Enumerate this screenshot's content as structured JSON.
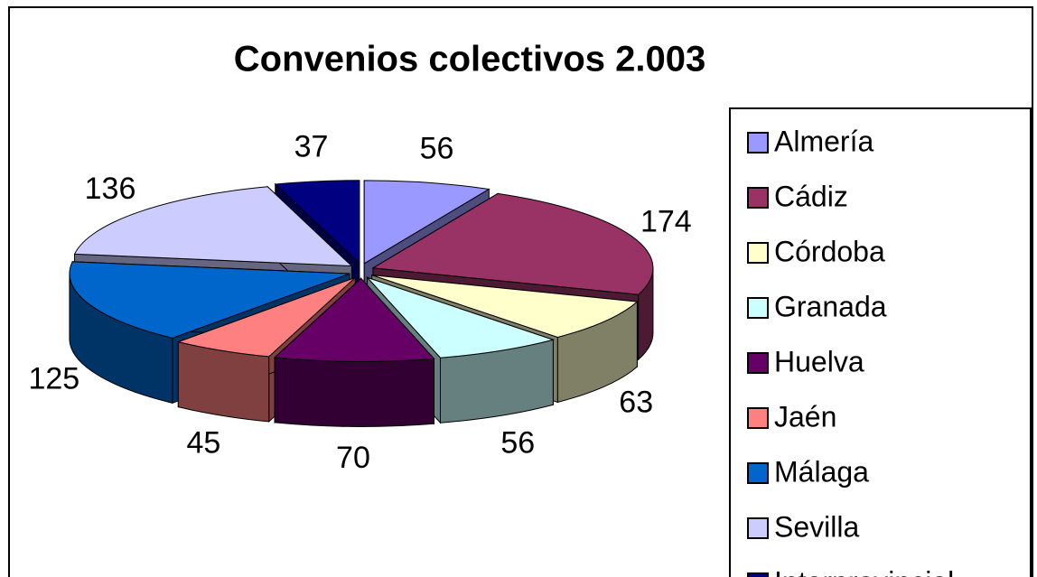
{
  "chart_data": {
    "type": "pie",
    "title": "Convenios colectivos 2.003",
    "categories": [
      "Almería",
      "Cádiz",
      "Córdoba",
      "Granada",
      "Huelva",
      "Jaén",
      "Málaga",
      "Sevilla",
      "Interprovincial"
    ],
    "values": [
      56,
      174,
      63,
      56,
      70,
      45,
      125,
      136,
      37
    ],
    "colors": [
      "#9999ff",
      "#993366",
      "#ffffcc",
      "#ccffff",
      "#660066",
      "#ff8080",
      "#0066cc",
      "#ccccff",
      "#000080"
    ],
    "legend": "right"
  }
}
